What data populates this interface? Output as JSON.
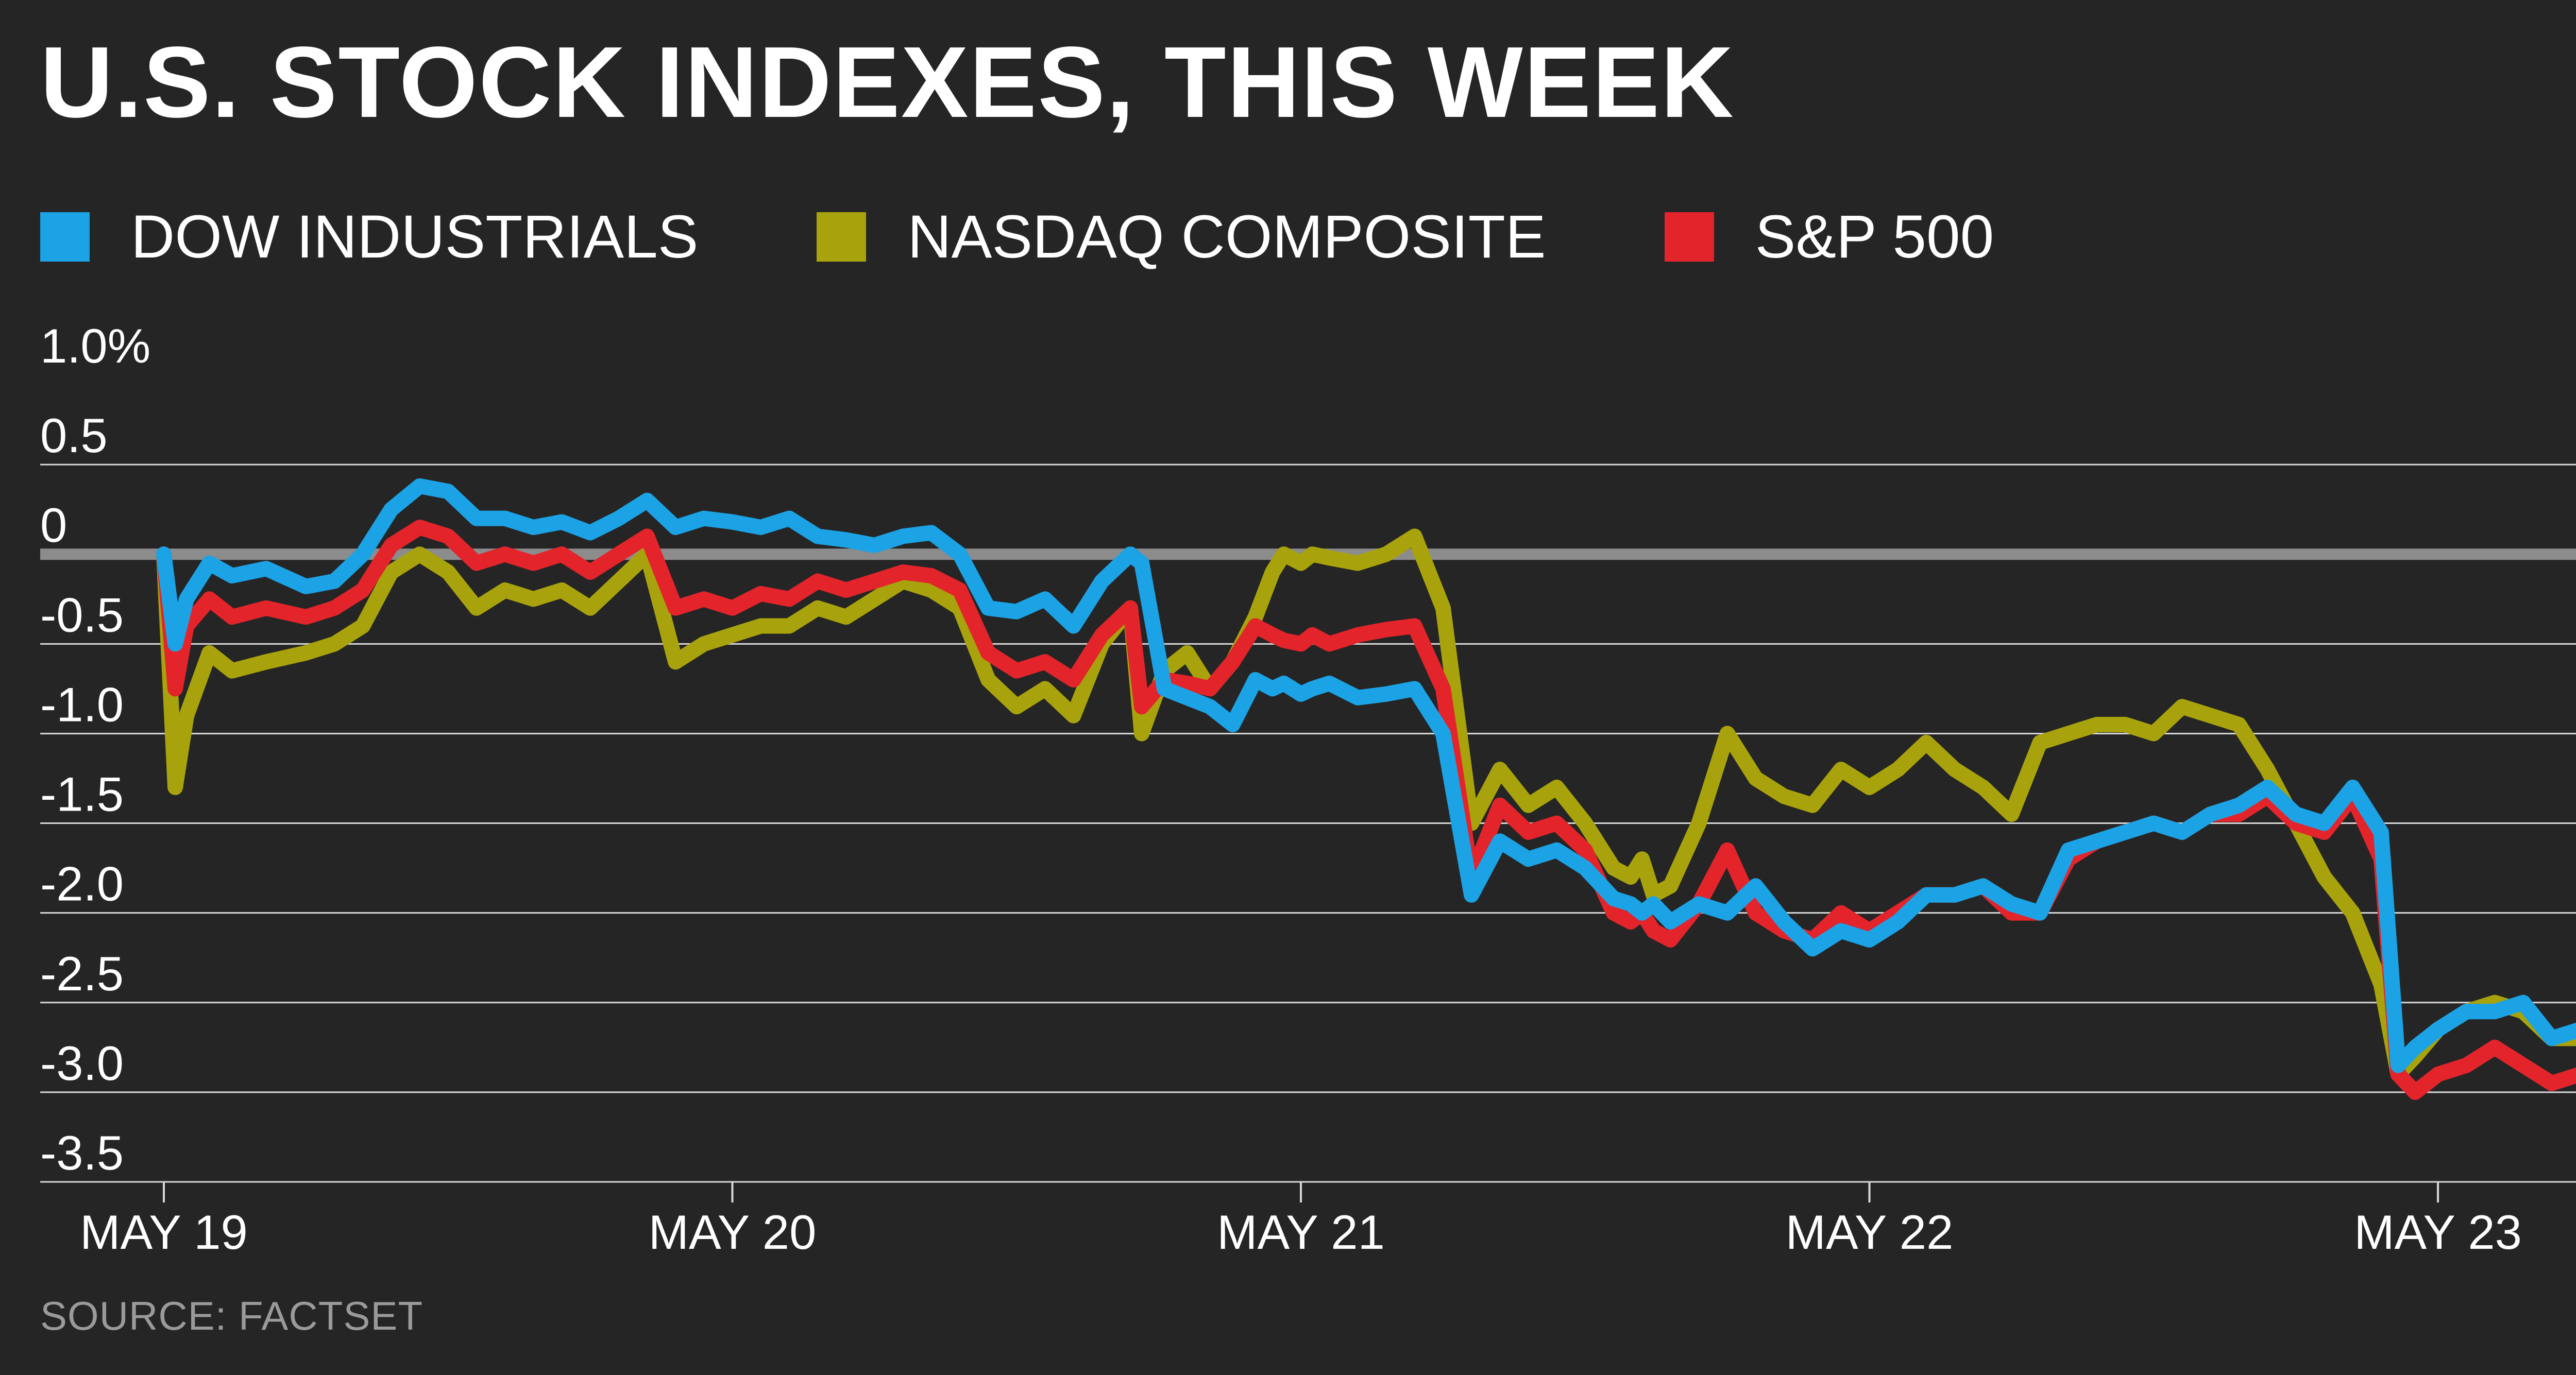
{
  "chart_data": {
    "type": "line",
    "title": "U.S. STOCK INDEXES, THIS WEEK",
    "source": "SOURCE: FACTSET",
    "xlabel": "",
    "ylabel": "",
    "x_ticks": [
      "MAY 19",
      "MAY 20",
      "MAY 21",
      "MAY 22",
      "MAY 23"
    ],
    "y_ticks": [
      "1.0%",
      "0.5",
      "0",
      "-0.5",
      "-1.0",
      "-1.5",
      "-2.0",
      "-2.5",
      "-3.0",
      "-3.5"
    ],
    "y_tick_values": [
      1.0,
      0.5,
      0,
      -0.5,
      -1.0,
      -1.5,
      -2.0,
      -2.5,
      -3.0,
      -3.5
    ],
    "ylim": [
      -3.5,
      1.0
    ],
    "xlim": [
      0,
      4.27
    ],
    "zero_line": 0,
    "grid": true,
    "legend_placement": "top-left",
    "series": [
      {
        "name": "DOW INDUSTRIALS",
        "color": "#1ba3e6",
        "x": [
          0,
          0.02,
          0.04,
          0.08,
          0.12,
          0.18,
          0.25,
          0.3,
          0.35,
          0.4,
          0.45,
          0.5,
          0.55,
          0.6,
          0.65,
          0.7,
          0.75,
          0.8,
          0.85,
          0.9,
          0.95,
          1.0,
          1.05,
          1.1,
          1.15,
          1.2,
          1.25,
          1.3,
          1.35,
          1.4,
          1.45,
          1.5,
          1.55,
          1.6,
          1.65,
          1.7,
          1.72,
          1.76,
          1.8,
          1.84,
          1.88,
          1.92,
          1.95,
          1.97,
          2.0,
          2.02,
          2.05,
          2.1,
          2.15,
          2.2,
          2.25,
          2.3,
          2.35,
          2.4,
          2.45,
          2.5,
          2.55,
          2.58,
          2.6,
          2.62,
          2.65,
          2.7,
          2.75,
          2.8,
          2.85,
          2.9,
          2.95,
          3.0,
          3.05,
          3.1,
          3.15,
          3.2,
          3.25,
          3.3,
          3.35,
          3.4,
          3.45,
          3.5,
          3.55,
          3.6,
          3.65,
          3.7,
          3.75,
          3.8,
          3.85,
          3.9,
          3.93,
          3.96,
          4.0,
          4.05,
          4.1,
          4.15,
          4.2,
          4.25,
          4.27
        ],
        "values": [
          0.0,
          -0.5,
          -0.25,
          -0.05,
          -0.12,
          -0.08,
          -0.18,
          -0.15,
          0.0,
          0.25,
          0.38,
          0.35,
          0.2,
          0.2,
          0.15,
          0.18,
          0.12,
          0.2,
          0.3,
          0.15,
          0.2,
          0.18,
          0.15,
          0.2,
          0.1,
          0.08,
          0.05,
          0.1,
          0.12,
          0.0,
          -0.3,
          -0.32,
          -0.25,
          -0.4,
          -0.15,
          0.0,
          -0.05,
          -0.75,
          -0.8,
          -0.85,
          -0.95,
          -0.7,
          -0.75,
          -0.72,
          -0.78,
          -0.75,
          -0.72,
          -0.8,
          -0.78,
          -0.75,
          -1.0,
          -1.9,
          -1.6,
          -1.7,
          -1.65,
          -1.75,
          -1.92,
          -1.95,
          -2.0,
          -1.95,
          -2.05,
          -1.95,
          -2.0,
          -1.85,
          -2.05,
          -2.2,
          -2.1,
          -2.15,
          -2.05,
          -1.9,
          -1.9,
          -1.85,
          -1.95,
          -2.0,
          -1.65,
          -1.6,
          -1.55,
          -1.5,
          -1.55,
          -1.45,
          -1.4,
          -1.3,
          -1.45,
          -1.5,
          -1.3,
          -1.55,
          -2.85,
          -2.75,
          -2.65,
          -2.55,
          -2.55,
          -2.5,
          -2.7,
          -2.65,
          -2.7
        ]
      },
      {
        "name": "NASDAQ COMPOSITE",
        "color": "#a8a30c",
        "x": [
          0,
          0.02,
          0.04,
          0.08,
          0.12,
          0.18,
          0.25,
          0.3,
          0.35,
          0.4,
          0.45,
          0.5,
          0.55,
          0.6,
          0.65,
          0.7,
          0.75,
          0.8,
          0.85,
          0.9,
          0.95,
          1.0,
          1.05,
          1.1,
          1.15,
          1.2,
          1.25,
          1.3,
          1.35,
          1.4,
          1.45,
          1.5,
          1.55,
          1.6,
          1.65,
          1.7,
          1.72,
          1.76,
          1.8,
          1.84,
          1.88,
          1.92,
          1.95,
          1.97,
          2.0,
          2.02,
          2.05,
          2.1,
          2.15,
          2.2,
          2.25,
          2.3,
          2.35,
          2.4,
          2.45,
          2.5,
          2.55,
          2.58,
          2.6,
          2.62,
          2.65,
          2.7,
          2.75,
          2.8,
          2.85,
          2.9,
          2.95,
          3.0,
          3.05,
          3.1,
          3.15,
          3.2,
          3.25,
          3.3,
          3.35,
          3.4,
          3.45,
          3.5,
          3.55,
          3.6,
          3.65,
          3.7,
          3.75,
          3.8,
          3.85,
          3.9,
          3.93,
          3.96,
          4.0,
          4.05,
          4.1,
          4.15,
          4.2,
          4.25,
          4.27
        ],
        "values": [
          0.0,
          -1.3,
          -0.9,
          -0.55,
          -0.65,
          -0.6,
          -0.55,
          -0.5,
          -0.4,
          -0.1,
          0.0,
          -0.1,
          -0.3,
          -0.2,
          -0.25,
          -0.2,
          -0.3,
          -0.15,
          0.0,
          -0.6,
          -0.5,
          -0.45,
          -0.4,
          -0.4,
          -0.3,
          -0.35,
          -0.25,
          -0.15,
          -0.2,
          -0.3,
          -0.7,
          -0.85,
          -0.75,
          -0.9,
          -0.5,
          -0.3,
          -1.0,
          -0.65,
          -0.55,
          -0.75,
          -0.6,
          -0.35,
          -0.1,
          0.0,
          -0.05,
          -0.0,
          -0.02,
          -0.05,
          0.0,
          0.1,
          -0.3,
          -1.5,
          -1.2,
          -1.4,
          -1.3,
          -1.5,
          -1.75,
          -1.8,
          -1.7,
          -1.9,
          -1.85,
          -1.5,
          -1.0,
          -1.25,
          -1.35,
          -1.4,
          -1.2,
          -1.3,
          -1.2,
          -1.05,
          -1.2,
          -1.3,
          -1.45,
          -1.05,
          -1.0,
          -0.95,
          -0.95,
          -1.0,
          -0.85,
          -0.9,
          -0.95,
          -1.2,
          -1.5,
          -1.8,
          -2.0,
          -2.4,
          -2.9,
          -2.8,
          -2.65,
          -2.55,
          -2.5,
          -2.55,
          -2.7,
          -2.7,
          -2.75
        ]
      },
      {
        "name": "S&P 500",
        "color": "#e3242b",
        "x": [
          0,
          0.02,
          0.04,
          0.08,
          0.12,
          0.18,
          0.25,
          0.3,
          0.35,
          0.4,
          0.45,
          0.5,
          0.55,
          0.6,
          0.65,
          0.7,
          0.75,
          0.8,
          0.85,
          0.9,
          0.95,
          1.0,
          1.05,
          1.1,
          1.15,
          1.2,
          1.25,
          1.3,
          1.35,
          1.4,
          1.45,
          1.5,
          1.55,
          1.6,
          1.65,
          1.7,
          1.72,
          1.76,
          1.8,
          1.84,
          1.88,
          1.92,
          1.95,
          1.97,
          2.0,
          2.02,
          2.05,
          2.1,
          2.15,
          2.2,
          2.25,
          2.3,
          2.35,
          2.4,
          2.45,
          2.5,
          2.55,
          2.58,
          2.6,
          2.62,
          2.65,
          2.7,
          2.75,
          2.8,
          2.85,
          2.9,
          2.95,
          3.0,
          3.05,
          3.1,
          3.15,
          3.2,
          3.25,
          3.3,
          3.35,
          3.4,
          3.45,
          3.5,
          3.55,
          3.6,
          3.65,
          3.7,
          3.75,
          3.8,
          3.85,
          3.9,
          3.93,
          3.96,
          4.0,
          4.05,
          4.1,
          4.15,
          4.2,
          4.25,
          4.27
        ],
        "values": [
          0.0,
          -0.75,
          -0.4,
          -0.25,
          -0.35,
          -0.3,
          -0.35,
          -0.3,
          -0.2,
          0.05,
          0.15,
          0.1,
          -0.05,
          0.0,
          -0.05,
          0.0,
          -0.1,
          0.0,
          0.1,
          -0.3,
          -0.25,
          -0.3,
          -0.22,
          -0.25,
          -0.15,
          -0.2,
          -0.15,
          -0.1,
          -0.12,
          -0.2,
          -0.55,
          -0.65,
          -0.6,
          -0.7,
          -0.45,
          -0.3,
          -0.85,
          -0.7,
          -0.72,
          -0.75,
          -0.6,
          -0.4,
          -0.45,
          -0.48,
          -0.5,
          -0.45,
          -0.5,
          -0.45,
          -0.42,
          -0.4,
          -0.75,
          -1.8,
          -1.4,
          -1.55,
          -1.5,
          -1.65,
          -2.0,
          -2.05,
          -2.0,
          -2.1,
          -2.15,
          -1.95,
          -1.65,
          -2.0,
          -2.1,
          -2.15,
          -2.0,
          -2.1,
          -2.0,
          -1.9,
          -1.9,
          -1.85,
          -2.0,
          -2.0,
          -1.7,
          -1.6,
          -1.55,
          -1.5,
          -1.55,
          -1.45,
          -1.45,
          -1.35,
          -1.5,
          -1.55,
          -1.35,
          -1.7,
          -2.9,
          -3.0,
          -2.9,
          -2.85,
          -2.75,
          -2.85,
          -2.95,
          -2.9,
          -2.95
        ]
      }
    ]
  }
}
